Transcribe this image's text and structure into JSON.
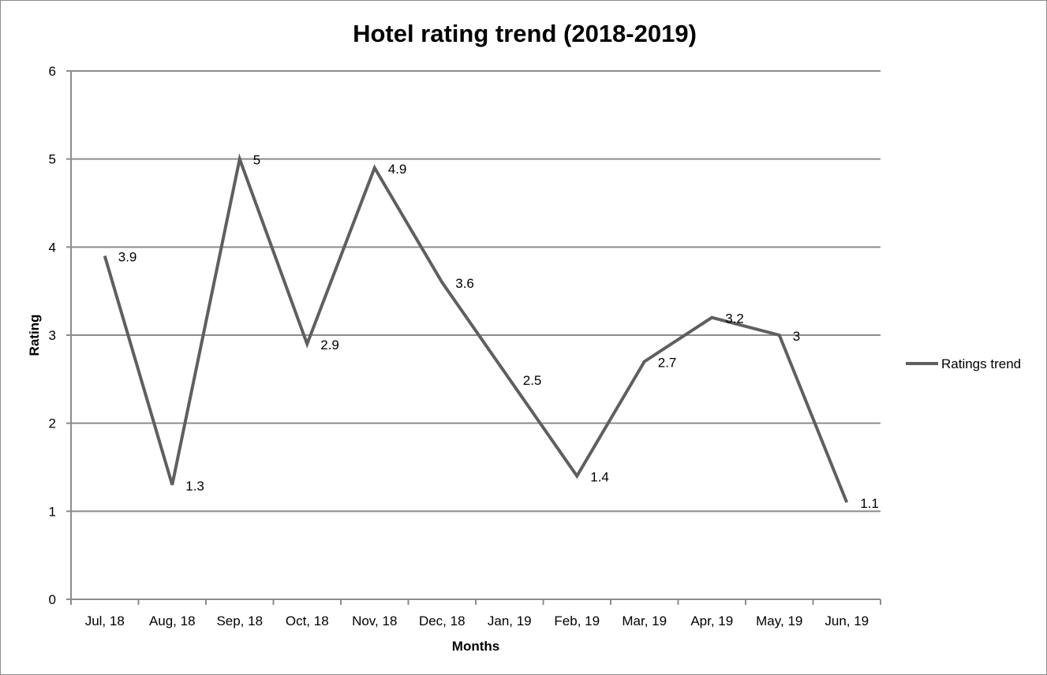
{
  "chart_data": {
    "type": "line",
    "title": "Hotel rating trend (2018-2019)",
    "xlabel": "Months",
    "ylabel": "Rating",
    "categories": [
      "Jul, 18",
      "Aug, 18",
      "Sep, 18",
      "Oct, 18",
      "Nov, 18",
      "Dec, 18",
      "Jan, 19",
      "Feb, 19",
      "Mar, 19",
      "Apr, 19",
      "May, 19",
      "Jun, 19"
    ],
    "series": [
      {
        "name": "Ratings trend",
        "values": [
          3.9,
          1.3,
          5,
          2.9,
          4.9,
          3.6,
          2.5,
          1.4,
          2.7,
          3.2,
          3,
          1.1
        ],
        "labels": [
          "3.9",
          "1.3",
          "5",
          "2.9",
          "4.9",
          "3.6",
          "2.5",
          "1.4",
          "2.7",
          "3.2",
          "3",
          "1.1"
        ],
        "color": "#5f5f5f"
      }
    ],
    "ylim": [
      0,
      6
    ],
    "yticks": [
      "0",
      "1",
      "2",
      "3",
      "4",
      "5",
      "6"
    ],
    "grid": "horizontal",
    "legend_position": "right",
    "gridline_color": "#8c8c8c",
    "axis_color": "#8c8c8c"
  }
}
